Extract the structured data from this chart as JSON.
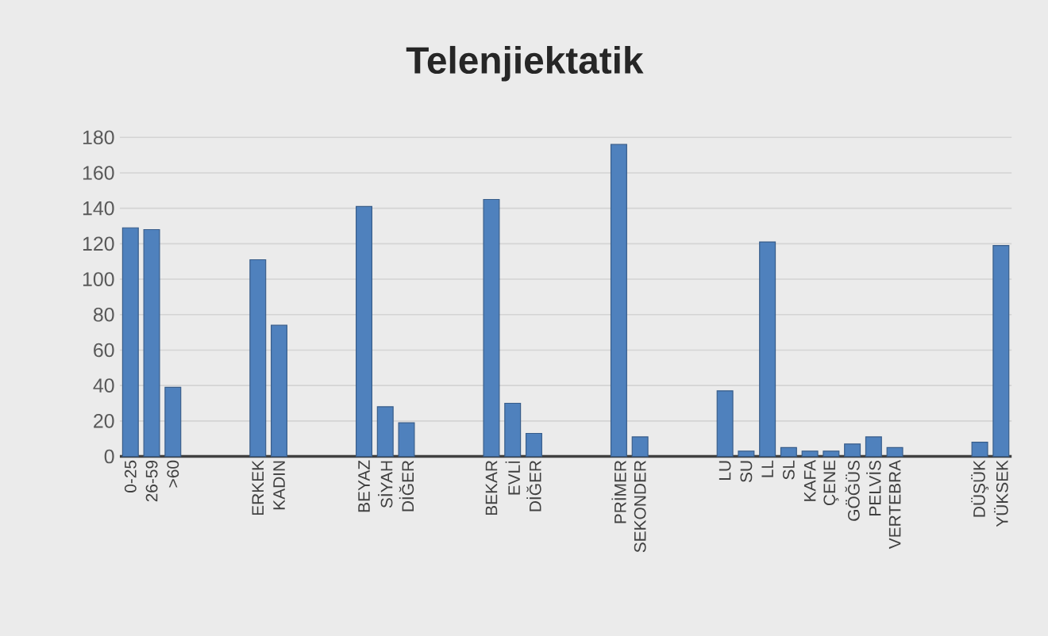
{
  "chart_data": {
    "type": "bar",
    "title": "Telenjiektatik",
    "categories": [
      "0-25",
      "26-59",
      ">60",
      null,
      null,
      null,
      "ERKEK",
      "KADIN",
      null,
      null,
      null,
      "BEYAZ",
      "SİYAH",
      "DİĞER",
      null,
      null,
      null,
      "BEKAR",
      "EVLİ",
      "DİĞER",
      null,
      null,
      null,
      "PRİMER",
      "SEKONDER",
      null,
      null,
      null,
      "LU",
      "SU",
      "LL",
      "SL",
      "KAFA",
      "ÇENE",
      "GÖĞÜS",
      "PELVİS",
      "VERTEBRA",
      null,
      null,
      null,
      "DÜŞÜK",
      "YÜKSEK"
    ],
    "values": [
      129,
      128,
      39,
      null,
      null,
      null,
      111,
      74,
      null,
      null,
      null,
      141,
      28,
      19,
      null,
      null,
      null,
      145,
      30,
      13,
      null,
      null,
      null,
      176,
      11,
      null,
      null,
      null,
      37,
      3,
      121,
      5,
      3,
      3,
      7,
      11,
      5,
      null,
      null,
      null,
      8,
      119
    ],
    "color": "#4f81bd",
    "ylim": [
      0,
      180
    ],
    "yticks": [
      0,
      20,
      40,
      60,
      80,
      100,
      120,
      140,
      160,
      180
    ],
    "grid": "y"
  }
}
